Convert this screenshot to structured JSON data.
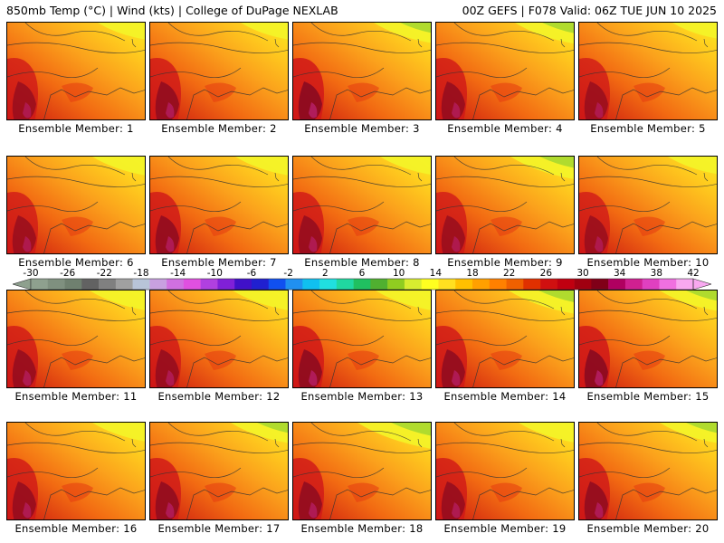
{
  "header": {
    "left": "850mb Temp (°C) | Wind (kts) | College of DuPage NEXLAB",
    "right": "00Z GEFS | F078 Valid: 06Z TUE JUN 10 2025"
  },
  "members": [
    {
      "label": "Ensemble Member: 1",
      "intensity": 0.7,
      "north_cool": 0.3
    },
    {
      "label": "Ensemble Member: 2",
      "intensity": 0.8,
      "north_cool": 0.3
    },
    {
      "label": "Ensemble Member: 3",
      "intensity": 0.9,
      "north_cool": 0.55
    },
    {
      "label": "Ensemble Member: 4",
      "intensity": 0.75,
      "north_cool": 0.6
    },
    {
      "label": "Ensemble Member: 5",
      "intensity": 0.7,
      "north_cool": 0.25
    },
    {
      "label": "Ensemble Member: 6",
      "intensity": 0.7,
      "north_cool": 0.45
    },
    {
      "label": "Ensemble Member: 7",
      "intensity": 0.8,
      "north_cool": 0.45
    },
    {
      "label": "Ensemble Member: 8",
      "intensity": 0.75,
      "north_cool": 0.4
    },
    {
      "label": "Ensemble Member: 9",
      "intensity": 0.7,
      "north_cool": 0.7
    },
    {
      "label": "Ensemble Member: 10",
      "intensity": 0.7,
      "north_cool": 0.35
    },
    {
      "label": "Ensemble Member: 11",
      "intensity": 0.75,
      "north_cool": 0.5
    },
    {
      "label": "Ensemble Member: 12",
      "intensity": 0.75,
      "north_cool": 0.5
    },
    {
      "label": "Ensemble Member: 13",
      "intensity": 0.85,
      "north_cool": 0.5
    },
    {
      "label": "Ensemble Member: 14",
      "intensity": 0.8,
      "north_cool": 0.75
    },
    {
      "label": "Ensemble Member: 15",
      "intensity": 0.9,
      "north_cool": 0.55
    },
    {
      "label": "Ensemble Member: 16",
      "intensity": 0.75,
      "north_cool": 0.45
    },
    {
      "label": "Ensemble Member: 17",
      "intensity": 0.8,
      "north_cool": 0.55
    },
    {
      "label": "Ensemble Member: 18",
      "intensity": 0.8,
      "north_cool": 0.95
    },
    {
      "label": "Ensemble Member: 19",
      "intensity": 0.75,
      "north_cool": 0.5
    },
    {
      "label": "Ensemble Member: 20",
      "intensity": 0.8,
      "north_cool": 0.55
    }
  ],
  "colorbar": {
    "labels": [
      "-30",
      "-26",
      "-22",
      "-18",
      "-14",
      "-10",
      "-6",
      "-2",
      "2",
      "6",
      "10",
      "14",
      "18",
      "22",
      "26",
      "30",
      "34",
      "38",
      "42"
    ],
    "colors": [
      "#8ea08e",
      "#7f907f",
      "#6f806f",
      "#626262",
      "#808080",
      "#a0a0a0",
      "#b8c4d8",
      "#c8a0e0",
      "#d070e0",
      "#e050e0",
      "#b040e0",
      "#8020d8",
      "#4010c8",
      "#2020d0",
      "#1050f0",
      "#2090f0",
      "#10c0f0",
      "#20e0e0",
      "#20d8a0",
      "#20c060",
      "#50b030",
      "#90cc20",
      "#d8ec30",
      "#ffff20",
      "#ffe020",
      "#ffc000",
      "#ffa000",
      "#ff8000",
      "#f06000",
      "#e03000",
      "#d01010",
      "#c00010",
      "#a00010",
      "#800018",
      "#b00060",
      "#d02090",
      "#e040c0",
      "#f070e0",
      "#f8a8f0"
    ]
  }
}
